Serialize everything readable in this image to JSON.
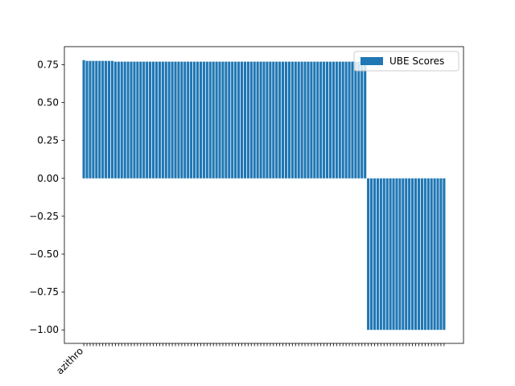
{
  "chart_data": {
    "type": "bar",
    "categories": [
      "azithro",
      null,
      null,
      null,
      null,
      null,
      null,
      null,
      null,
      null,
      null,
      null,
      null,
      null,
      null,
      null,
      null,
      null,
      null,
      null,
      null,
      null,
      null,
      null,
      null,
      null,
      null,
      null,
      null,
      null,
      null,
      null,
      null,
      null,
      null,
      null,
      null,
      null,
      null,
      null,
      null,
      null,
      null,
      null,
      null,
      null,
      null,
      null,
      null,
      null,
      null,
      null,
      null,
      null,
      null,
      null,
      null,
      null,
      null,
      null,
      null,
      null,
      null,
      null,
      null,
      null,
      null,
      null,
      null,
      null,
      null,
      null,
      null,
      null,
      null,
      null,
      null,
      null,
      null,
      null,
      null,
      null,
      null,
      null,
      null,
      null,
      null,
      null,
      null,
      null,
      null,
      null,
      null,
      null,
      null,
      null,
      null,
      null,
      null,
      null,
      null,
      null,
      null,
      null,
      null,
      null,
      null,
      null,
      null,
      null,
      null,
      null,
      null,
      null,
      null
    ],
    "series": [
      {
        "name": "UBE Scores",
        "color": "#1f77b4",
        "values": [
          0.78,
          0.775,
          0.775,
          0.775,
          0.775,
          0.775,
          0.775,
          0.775,
          0.775,
          0.775,
          0.77,
          0.77,
          0.77,
          0.77,
          0.77,
          0.77,
          0.77,
          0.77,
          0.77,
          0.77,
          0.77,
          0.77,
          0.77,
          0.77,
          0.77,
          0.77,
          0.77,
          0.77,
          0.77,
          0.77,
          0.77,
          0.77,
          0.77,
          0.77,
          0.77,
          0.77,
          0.77,
          0.77,
          0.77,
          0.77,
          0.77,
          0.77,
          0.77,
          0.77,
          0.77,
          0.77,
          0.77,
          0.77,
          0.77,
          0.77,
          0.77,
          0.77,
          0.77,
          0.77,
          0.77,
          0.77,
          0.77,
          0.77,
          0.77,
          0.77,
          0.77,
          0.77,
          0.77,
          0.77,
          0.77,
          0.77,
          0.77,
          0.77,
          0.77,
          0.77,
          0.77,
          0.77,
          0.77,
          0.77,
          0.77,
          0.77,
          0.77,
          0.77,
          0.77,
          0.77,
          0.77,
          0.77,
          0.77,
          0.77,
          0.77,
          0.77,
          0.77,
          0.77,
          0.77,
          0.77,
          -1,
          -1,
          -1,
          -1,
          -1,
          -1,
          -1,
          -1,
          -1,
          -1,
          -1,
          -1,
          -1,
          -1,
          -1,
          -1,
          -1,
          -1,
          -1,
          -1,
          -1,
          -1,
          -1,
          -1,
          -1
        ]
      }
    ],
    "ylim": [
      -1.089,
      0.869
    ],
    "yticks": [
      {
        "value": 0.75,
        "label": "0.75"
      },
      {
        "value": 0.5,
        "label": "0.50"
      },
      {
        "value": 0.25,
        "label": "0.25"
      },
      {
        "value": 0,
        "label": "0.00"
      },
      {
        "value": -0.25,
        "label": "−0.25"
      },
      {
        "value": -0.5,
        "label": "−0.50"
      },
      {
        "value": -0.75,
        "label": "−0.75"
      },
      {
        "value": -1,
        "label": "−1.00"
      }
    ],
    "legend": "upper right"
  }
}
